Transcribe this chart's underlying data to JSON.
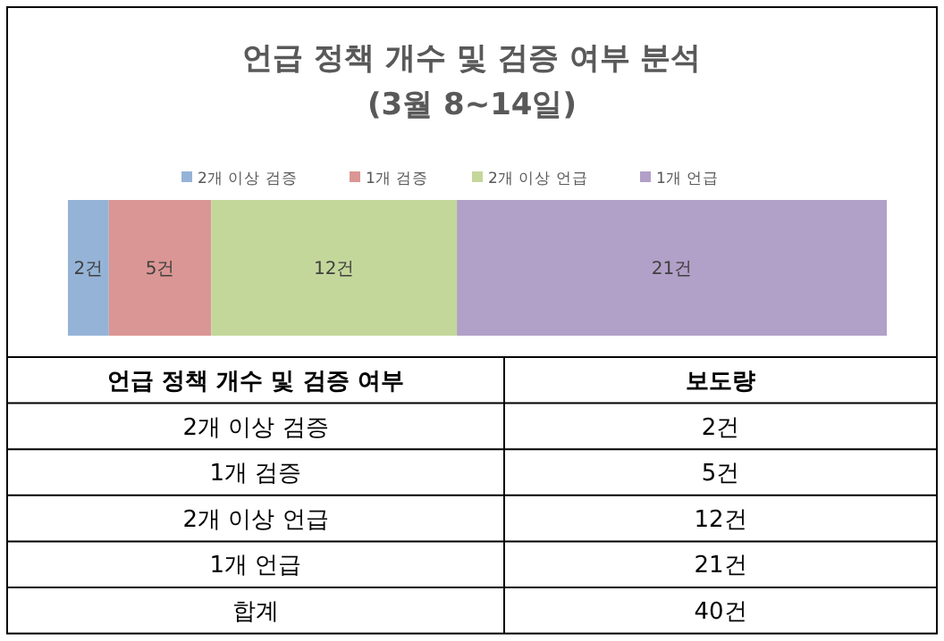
{
  "chart_data": {
    "type": "bar",
    "orientation": "horizontal",
    "stacked": true,
    "title": "언급 정책 개수 및 검증 여부 분석",
    "subtitle": "(3월 8~14일)",
    "categories": [
      null
    ],
    "xlim": [
      0,
      40
    ],
    "tick_labels": false,
    "legend": "top",
    "grid": false,
    "series": [
      {
        "name": "2개 이상 검증",
        "color": "#95b3d7",
        "values": [
          2
        ],
        "value_labels": [
          "2건"
        ]
      },
      {
        "name": "1개 검증",
        "color": "#da9694",
        "values": [
          5
        ],
        "value_labels": [
          "5건"
        ]
      },
      {
        "name": "2개 이상 언급",
        "color": "#c4d79b",
        "values": [
          12
        ],
        "value_labels": [
          "12건"
        ]
      },
      {
        "name": "1개 언급",
        "color": "#b1a0c7",
        "values": [
          21
        ],
        "value_labels": [
          "21건"
        ]
      }
    ],
    "annotations": [
      "언급 정책 개수 및 검증 여부",
      "보도량",
      "합계",
      "40건"
    ]
  }
}
